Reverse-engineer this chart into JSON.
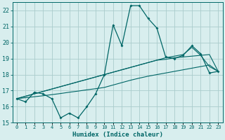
{
  "xlabel": "Humidex (Indice chaleur)",
  "bg_color": "#d8eeee",
  "grid_color": "#aacccc",
  "line_color": "#006666",
  "ylim": [
    15,
    22.5
  ],
  "xlim": [
    -0.5,
    23.5
  ],
  "yticks": [
    15,
    16,
    17,
    18,
    19,
    20,
    21,
    22
  ],
  "xtick_labels": [
    "0",
    "1",
    "2",
    "3",
    "4",
    "5",
    "6",
    "7",
    "8",
    "9",
    "10",
    "11",
    "12",
    "13",
    "14",
    "15",
    "16",
    "17",
    "18",
    "19",
    "20",
    "21",
    "22",
    "23"
  ],
  "main_y": [
    16.5,
    16.3,
    16.9,
    16.8,
    16.5,
    15.3,
    15.6,
    15.3,
    16.0,
    16.8,
    18.0,
    21.1,
    19.8,
    22.3,
    22.3,
    21.5,
    20.9,
    19.1,
    19.0,
    19.2,
    19.8,
    19.3,
    18.1,
    18.2
  ],
  "trend1_y": [
    16.5,
    16.65,
    16.8,
    16.95,
    17.1,
    17.25,
    17.4,
    17.55,
    17.7,
    17.85,
    18.0,
    18.15,
    18.3,
    18.45,
    18.6,
    18.75,
    18.9,
    18.95,
    19.05,
    19.1,
    19.15,
    19.2,
    19.25,
    18.2
  ],
  "trend2_y": [
    16.5,
    16.65,
    16.8,
    16.95,
    17.1,
    17.25,
    17.4,
    17.55,
    17.7,
    17.85,
    18.0,
    18.15,
    18.3,
    18.45,
    18.6,
    18.75,
    18.9,
    19.05,
    19.15,
    19.25,
    19.7,
    19.2,
    18.5,
    18.2
  ],
  "trend3_y": [
    16.5,
    16.56,
    16.62,
    16.68,
    16.75,
    16.82,
    16.9,
    16.97,
    17.05,
    17.12,
    17.2,
    17.35,
    17.5,
    17.65,
    17.78,
    17.9,
    18.0,
    18.1,
    18.2,
    18.3,
    18.4,
    18.5,
    18.6,
    18.2
  ]
}
